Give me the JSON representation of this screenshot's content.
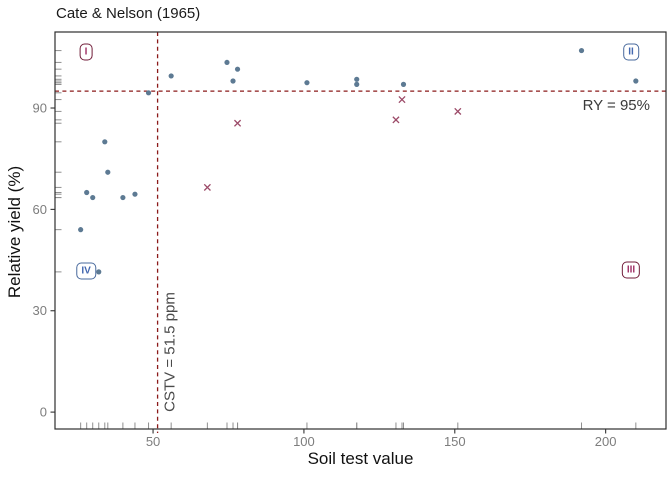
{
  "chart_data": {
    "type": "scatter",
    "title": "Cate & Nelson (1965)",
    "xlabel": "Soil test value",
    "ylabel": "Relative yield (%)",
    "xlim": [
      17.5,
      220
    ],
    "ylim": [
      -5,
      112.5
    ],
    "x_ticks": [
      50,
      100,
      150,
      200
    ],
    "y_ticks": [
      0,
      30,
      60,
      90
    ],
    "grid": false,
    "rug": true,
    "legend": "none",
    "series": [
      {
        "name": "well-classified-points",
        "marker": "circle",
        "color": "#5d7a93",
        "points": [
          [
            26,
            54
          ],
          [
            28,
            65
          ],
          [
            30,
            63.5
          ],
          [
            32,
            41.5
          ],
          [
            34,
            80
          ],
          [
            35,
            71
          ],
          [
            40,
            63.5
          ],
          [
            44,
            64.5
          ],
          [
            48.5,
            94.5
          ],
          [
            56,
            99.5
          ],
          [
            74.5,
            103.5
          ],
          [
            76.5,
            98
          ],
          [
            78,
            101.5
          ],
          [
            101,
            97.5
          ],
          [
            117.5,
            97
          ],
          [
            117.5,
            98.5
          ],
          [
            133,
            97
          ],
          [
            192,
            107
          ],
          [
            210,
            98
          ]
        ]
      },
      {
        "name": "misclassified-points",
        "marker": "x",
        "color": "#9c4a68",
        "points": [
          [
            68,
            66.5
          ],
          [
            78,
            85.5
          ],
          [
            130.5,
            86.5
          ],
          [
            132.5,
            92.5
          ],
          [
            151,
            89
          ]
        ]
      }
    ],
    "reference_lines": {
      "vertical": {
        "value": 51.5,
        "label": "CSTV = 51.5 ppm"
      },
      "horizontal": {
        "value": 95,
        "label": "RY = 95%"
      }
    },
    "quadrant_labels": [
      {
        "label": "I",
        "x": 27.8,
        "y": 106.6,
        "tone": "wine"
      },
      {
        "label": "II",
        "x": 208.4,
        "y": 106.6,
        "tone": "blue"
      },
      {
        "label": "III",
        "x": 208.4,
        "y": 42.0,
        "tone": "wine"
      },
      {
        "label": "IV",
        "x": 27.8,
        "y": 41.8,
        "tone": "blue"
      }
    ]
  },
  "colors": {
    "dot": "#5d7a93",
    "cross": "#9c4a68",
    "dashed_line": "#8b1a1a",
    "panel_border": "#2e2e2e",
    "tick": "#333333",
    "tick_label": "#7d7d7d",
    "rug": "#8f8f8f",
    "annotation": "#3a3a3a"
  }
}
